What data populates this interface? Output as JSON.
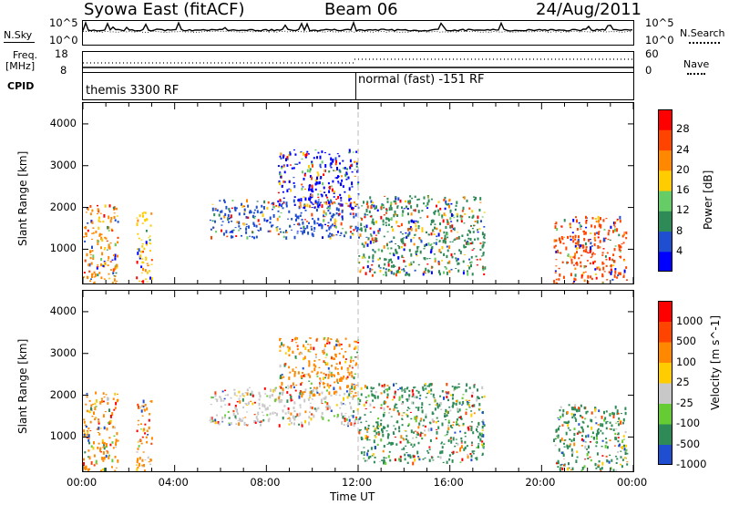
{
  "header": {
    "station": "Syowa East (fitACF)",
    "beam": "Beam 06",
    "date": "24/Aug/2011"
  },
  "top_panels": {
    "noise": {
      "left_label": "N.Sky",
      "right_label": "N.Search",
      "left_ticks": [
        "10^5",
        "10^0"
      ],
      "right_ticks": [
        "10^5",
        "10^0"
      ]
    },
    "freq": {
      "left_label_line1": "Freq.",
      "left_label_line2": "[MHz]",
      "right_label": "Nave",
      "left_ticks": [
        "18",
        "8"
      ],
      "right_ticks": [
        "60",
        "0"
      ]
    },
    "cpid": {
      "label": "CPID",
      "segments": [
        "themis 3300 RF",
        "normal (fast) -151 RF"
      ]
    }
  },
  "chart_data": [
    {
      "type": "heatmap",
      "title": "",
      "xlabel": "",
      "ylabel": "Slant Range [km]",
      "x_ticks": [
        "00:00",
        "04:00",
        "08:00",
        "12:00",
        "16:00",
        "20:00",
        "00:00"
      ],
      "y_ticks": [
        "1000",
        "2000",
        "3000",
        "4000"
      ],
      "ylim": [
        180,
        4500
      ],
      "colorbar": {
        "label": "Power [dB]",
        "ticks": [
          "4",
          "8",
          "12",
          "16",
          "20",
          "24",
          "28"
        ],
        "colors": [
          "#0000ff",
          "#1f4fd0",
          "#2e8b57",
          "#66cc66",
          "#ffcc00",
          "#ff8800",
          "#ff4400",
          "#ff0000"
        ]
      },
      "echo_regions": [
        {
          "t_start": 0.0,
          "t_end": 1.5,
          "r_min": 200,
          "r_max": 2100,
          "dominant": "#ff8800"
        },
        {
          "t_start": 2.3,
          "t_end": 3.0,
          "r_min": 200,
          "r_max": 1900,
          "dominant": "#ffcc00"
        },
        {
          "t_start": 5.5,
          "t_end": 12.0,
          "r_min": 1300,
          "r_max": 2200,
          "dominant": "#1f4fd0"
        },
        {
          "t_start": 8.5,
          "t_end": 12.0,
          "r_min": 2000,
          "r_max": 3400,
          "dominant": "#0000ff"
        },
        {
          "t_start": 12.0,
          "t_end": 17.5,
          "r_min": 400,
          "r_max": 2300,
          "dominant": "#2e8b57"
        },
        {
          "t_start": 20.5,
          "t_end": 23.7,
          "r_min": 200,
          "r_max": 1800,
          "dominant": "#ff4400"
        }
      ]
    },
    {
      "type": "heatmap",
      "title": "",
      "xlabel": "Time UT",
      "ylabel": "Slant Range [km]",
      "x_ticks": [
        "00:00",
        "04:00",
        "08:00",
        "12:00",
        "16:00",
        "20:00",
        "00:00"
      ],
      "y_ticks": [
        "1000",
        "2000",
        "3000",
        "4000"
      ],
      "ylim": [
        180,
        4500
      ],
      "colorbar": {
        "label": "Velocity [m s^-1]",
        "ticks": [
          "1000",
          "500",
          "100",
          "25",
          "-25",
          "-100",
          "-500",
          "-1000"
        ],
        "colors": [
          "#1f4fd0",
          "#2e8b57",
          "#66cc33",
          "#c8c8c8",
          "#ffcc00",
          "#ff8800",
          "#ff4400",
          "#ff0000"
        ]
      },
      "echo_regions": [
        {
          "t_start": 0.0,
          "t_end": 1.5,
          "r_min": 200,
          "r_max": 2100,
          "dominant": "#ff8800"
        },
        {
          "t_start": 2.3,
          "t_end": 3.0,
          "r_min": 200,
          "r_max": 1900,
          "dominant": "#ff8800"
        },
        {
          "t_start": 5.5,
          "t_end": 12.0,
          "r_min": 1300,
          "r_max": 2200,
          "dominant": "#c8c8c8"
        },
        {
          "t_start": 8.5,
          "t_end": 12.0,
          "r_min": 2000,
          "r_max": 3400,
          "dominant": "#ff8800"
        },
        {
          "t_start": 12.0,
          "t_end": 17.5,
          "r_min": 400,
          "r_max": 2300,
          "dominant": "#2e8b57"
        },
        {
          "t_start": 20.5,
          "t_end": 23.7,
          "r_min": 200,
          "r_max": 1800,
          "dominant": "#2e8b57"
        }
      ]
    }
  ]
}
